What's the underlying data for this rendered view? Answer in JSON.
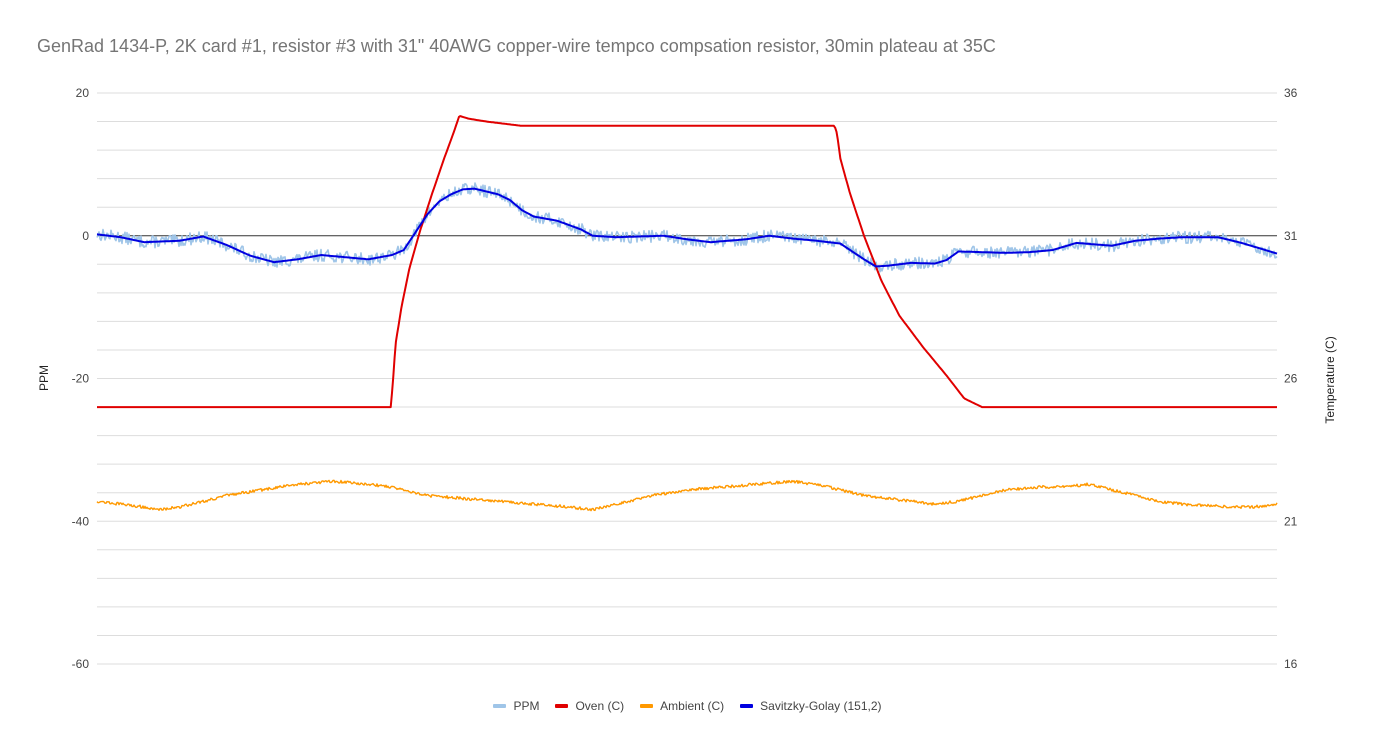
{
  "chart_data": {
    "type": "line",
    "title": "GenRad 1434-P, 2K card #1, resistor #3 with 31\" 40AWG copper-wire tempco compsation resistor, 30min plateau at 35C",
    "xlabel": "",
    "ylabel": "PPM",
    "y2label": "Temperature (C)",
    "ylim": [
      -60,
      20
    ],
    "y2lim": [
      16,
      36
    ],
    "yticks": [
      "20",
      "0",
      "-20",
      "-40",
      "-60"
    ],
    "y2ticks": [
      "36",
      "31",
      "26",
      "21",
      "16"
    ],
    "grid": true,
    "legend_position": "bottom",
    "x_domain": [
      0,
      1
    ],
    "series": [
      {
        "name": "PPM",
        "axis": "left",
        "color": "#9fc5e8",
        "noisy": true,
        "points": [
          [
            0,
            0.2
          ],
          [
            0.02,
            -0.2
          ],
          [
            0.04,
            -0.9
          ],
          [
            0.07,
            -0.7
          ],
          [
            0.09,
            -0.1
          ],
          [
            0.11,
            -1.3
          ],
          [
            0.13,
            -2.8
          ],
          [
            0.15,
            -3.7
          ],
          [
            0.17,
            -3.3
          ],
          [
            0.19,
            -2.7
          ],
          [
            0.21,
            -3.0
          ],
          [
            0.23,
            -3.3
          ],
          [
            0.25,
            -2.7
          ],
          [
            0.26,
            -2.0
          ],
          [
            0.27,
            0.5
          ],
          [
            0.28,
            3.0
          ],
          [
            0.29,
            4.8
          ],
          [
            0.3,
            5.8
          ],
          [
            0.31,
            6.5
          ],
          [
            0.32,
            6.6
          ],
          [
            0.33,
            6.2
          ],
          [
            0.34,
            5.8
          ],
          [
            0.35,
            5.0
          ],
          [
            0.36,
            3.6
          ],
          [
            0.37,
            2.7
          ],
          [
            0.38,
            2.4
          ],
          [
            0.39,
            2.1
          ],
          [
            0.4,
            1.5
          ],
          [
            0.41,
            0.9
          ],
          [
            0.42,
            0.0
          ],
          [
            0.44,
            -0.2
          ],
          [
            0.46,
            -0.1
          ],
          [
            0.48,
            0.0
          ],
          [
            0.5,
            -0.5
          ],
          [
            0.52,
            -0.9
          ],
          [
            0.55,
            -0.5
          ],
          [
            0.57,
            0.0
          ],
          [
            0.59,
            -0.4
          ],
          [
            0.61,
            -0.7
          ],
          [
            0.63,
            -1.1
          ],
          [
            0.64,
            -2.2
          ],
          [
            0.65,
            -3.3
          ],
          [
            0.66,
            -4.3
          ],
          [
            0.67,
            -4.2
          ],
          [
            0.69,
            -3.8
          ],
          [
            0.71,
            -3.9
          ],
          [
            0.72,
            -3.4
          ],
          [
            0.73,
            -2.2
          ],
          [
            0.75,
            -2.3
          ],
          [
            0.77,
            -2.4
          ],
          [
            0.79,
            -2.3
          ],
          [
            0.81,
            -2.0
          ],
          [
            0.83,
            -1.0
          ],
          [
            0.86,
            -1.4
          ],
          [
            0.88,
            -0.7
          ],
          [
            0.9,
            -0.4
          ],
          [
            0.92,
            -0.2
          ],
          [
            0.95,
            -0.2
          ],
          [
            0.97,
            -1.0
          ],
          [
            1.0,
            -2.5
          ]
        ]
      },
      {
        "name": "Oven (C)",
        "axis": "right",
        "color": "#e00000",
        "noisy": false,
        "points": [
          [
            0,
            25.0
          ],
          [
            0.249,
            25.0
          ],
          [
            0.251,
            26.0
          ],
          [
            0.253,
            27.2
          ],
          [
            0.258,
            28.5
          ],
          [
            0.265,
            29.9
          ],
          [
            0.274,
            31.2
          ],
          [
            0.285,
            32.6
          ],
          [
            0.295,
            33.8
          ],
          [
            0.303,
            34.7
          ],
          [
            0.307,
            35.2
          ],
          [
            0.315,
            35.1
          ],
          [
            0.33,
            35.0
          ],
          [
            0.36,
            34.85
          ],
          [
            0.4,
            34.85
          ],
          [
            0.5,
            34.85
          ],
          [
            0.6,
            34.85
          ],
          [
            0.625,
            34.85
          ],
          [
            0.627,
            34.6
          ],
          [
            0.63,
            33.7
          ],
          [
            0.638,
            32.5
          ],
          [
            0.65,
            31.0
          ],
          [
            0.665,
            29.4
          ],
          [
            0.68,
            28.2
          ],
          [
            0.7,
            27.1
          ],
          [
            0.72,
            26.1
          ],
          [
            0.735,
            25.3
          ],
          [
            0.75,
            25.0
          ],
          [
            0.8,
            25.0
          ],
          [
            0.9,
            25.0
          ],
          [
            1.0,
            25.0
          ]
        ]
      },
      {
        "name": "Ambient (C)",
        "axis": "right",
        "color": "#ff9900",
        "noisy": true,
        "points": [
          [
            0,
            21.7
          ],
          [
            0.02,
            21.6
          ],
          [
            0.04,
            21.5
          ],
          [
            0.05,
            21.4
          ],
          [
            0.07,
            21.5
          ],
          [
            0.09,
            21.7
          ],
          [
            0.11,
            21.9
          ],
          [
            0.14,
            22.1
          ],
          [
            0.17,
            22.3
          ],
          [
            0.2,
            22.4
          ],
          [
            0.23,
            22.3
          ],
          [
            0.25,
            22.2
          ],
          [
            0.28,
            21.9
          ],
          [
            0.31,
            21.8
          ],
          [
            0.34,
            21.7
          ],
          [
            0.37,
            21.6
          ],
          [
            0.4,
            21.5
          ],
          [
            0.42,
            21.4
          ],
          [
            0.44,
            21.6
          ],
          [
            0.47,
            21.9
          ],
          [
            0.5,
            22.1
          ],
          [
            0.53,
            22.2
          ],
          [
            0.56,
            22.3
          ],
          [
            0.59,
            22.4
          ],
          [
            0.62,
            22.2
          ],
          [
            0.65,
            21.9
          ],
          [
            0.67,
            21.8
          ],
          [
            0.69,
            21.7
          ],
          [
            0.71,
            21.6
          ],
          [
            0.73,
            21.7
          ],
          [
            0.75,
            21.9
          ],
          [
            0.77,
            22.1
          ],
          [
            0.8,
            22.2
          ],
          [
            0.82,
            22.2
          ],
          [
            0.84,
            22.3
          ],
          [
            0.86,
            22.1
          ],
          [
            0.88,
            21.9
          ],
          [
            0.9,
            21.7
          ],
          [
            0.92,
            21.6
          ],
          [
            0.94,
            21.55
          ],
          [
            0.96,
            21.5
          ],
          [
            0.98,
            21.5
          ],
          [
            1.0,
            21.6
          ]
        ]
      },
      {
        "name": "Savitzky-Golay (151,2)",
        "axis": "left",
        "color": "#0000e0",
        "noisy": false,
        "points": [
          [
            0,
            0.2
          ],
          [
            0.02,
            -0.2
          ],
          [
            0.04,
            -0.9
          ],
          [
            0.07,
            -0.7
          ],
          [
            0.09,
            -0.1
          ],
          [
            0.11,
            -1.3
          ],
          [
            0.13,
            -2.8
          ],
          [
            0.15,
            -3.7
          ],
          [
            0.17,
            -3.3
          ],
          [
            0.19,
            -2.7
          ],
          [
            0.21,
            -3.0
          ],
          [
            0.23,
            -3.3
          ],
          [
            0.25,
            -2.7
          ],
          [
            0.26,
            -2.0
          ],
          [
            0.27,
            0.5
          ],
          [
            0.28,
            3.0
          ],
          [
            0.29,
            4.8
          ],
          [
            0.3,
            5.8
          ],
          [
            0.31,
            6.5
          ],
          [
            0.32,
            6.6
          ],
          [
            0.33,
            6.2
          ],
          [
            0.34,
            5.8
          ],
          [
            0.35,
            5.0
          ],
          [
            0.36,
            3.6
          ],
          [
            0.37,
            2.7
          ],
          [
            0.38,
            2.4
          ],
          [
            0.39,
            2.1
          ],
          [
            0.4,
            1.5
          ],
          [
            0.41,
            0.9
          ],
          [
            0.42,
            0.0
          ],
          [
            0.44,
            -0.2
          ],
          [
            0.46,
            -0.1
          ],
          [
            0.48,
            0.0
          ],
          [
            0.5,
            -0.5
          ],
          [
            0.52,
            -0.9
          ],
          [
            0.55,
            -0.5
          ],
          [
            0.57,
            0.0
          ],
          [
            0.59,
            -0.4
          ],
          [
            0.61,
            -0.7
          ],
          [
            0.63,
            -1.1
          ],
          [
            0.64,
            -2.2
          ],
          [
            0.65,
            -3.3
          ],
          [
            0.66,
            -4.3
          ],
          [
            0.67,
            -4.2
          ],
          [
            0.69,
            -3.8
          ],
          [
            0.71,
            -3.9
          ],
          [
            0.72,
            -3.4
          ],
          [
            0.73,
            -2.2
          ],
          [
            0.75,
            -2.3
          ],
          [
            0.77,
            -2.4
          ],
          [
            0.79,
            -2.3
          ],
          [
            0.81,
            -2.0
          ],
          [
            0.83,
            -1.0
          ],
          [
            0.86,
            -1.4
          ],
          [
            0.88,
            -0.7
          ],
          [
            0.9,
            -0.4
          ],
          [
            0.92,
            -0.2
          ],
          [
            0.95,
            -0.2
          ],
          [
            0.97,
            -1.0
          ],
          [
            1.0,
            -2.5
          ]
        ]
      }
    ]
  }
}
